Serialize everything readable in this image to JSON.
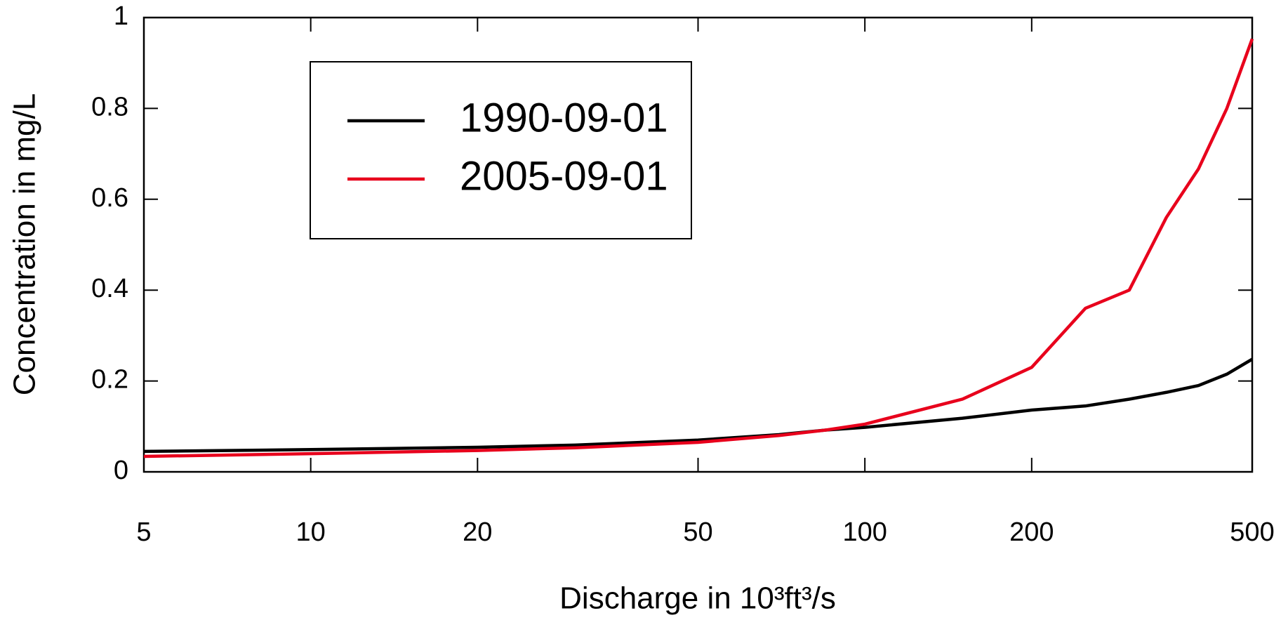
{
  "chart_data": {
    "type": "line",
    "x": [
      5,
      10,
      20,
      30,
      50,
      70,
      85,
      100,
      150,
      200,
      250,
      300,
      350,
      400,
      450,
      500
    ],
    "series": [
      {
        "name": "1990-09-01",
        "color": "#000000",
        "values": [
          0.045,
          0.049,
          0.054,
          0.059,
          0.07,
          0.082,
          0.092,
          0.098,
          0.118,
          0.136,
          0.145,
          0.16,
          0.175,
          0.19,
          0.215,
          0.248
        ]
      },
      {
        "name": "2005-09-01",
        "color": "#e8001c",
        "values": [
          0.034,
          0.04,
          0.047,
          0.053,
          0.065,
          0.08,
          0.092,
          0.105,
          0.16,
          0.23,
          0.36,
          0.4,
          0.56,
          0.667,
          0.8,
          0.953
        ]
      }
    ],
    "xlabel": "Discharge in 10³ft³/s",
    "ylabel": "Concentration in mg/L",
    "xscale": "log",
    "xlim": [
      5,
      500
    ],
    "xticks": [
      5,
      10,
      20,
      50,
      100,
      200,
      500
    ],
    "ylim": [
      0,
      1
    ],
    "yticks": [
      0,
      0.2,
      0.4,
      0.6,
      0.8,
      1
    ]
  }
}
